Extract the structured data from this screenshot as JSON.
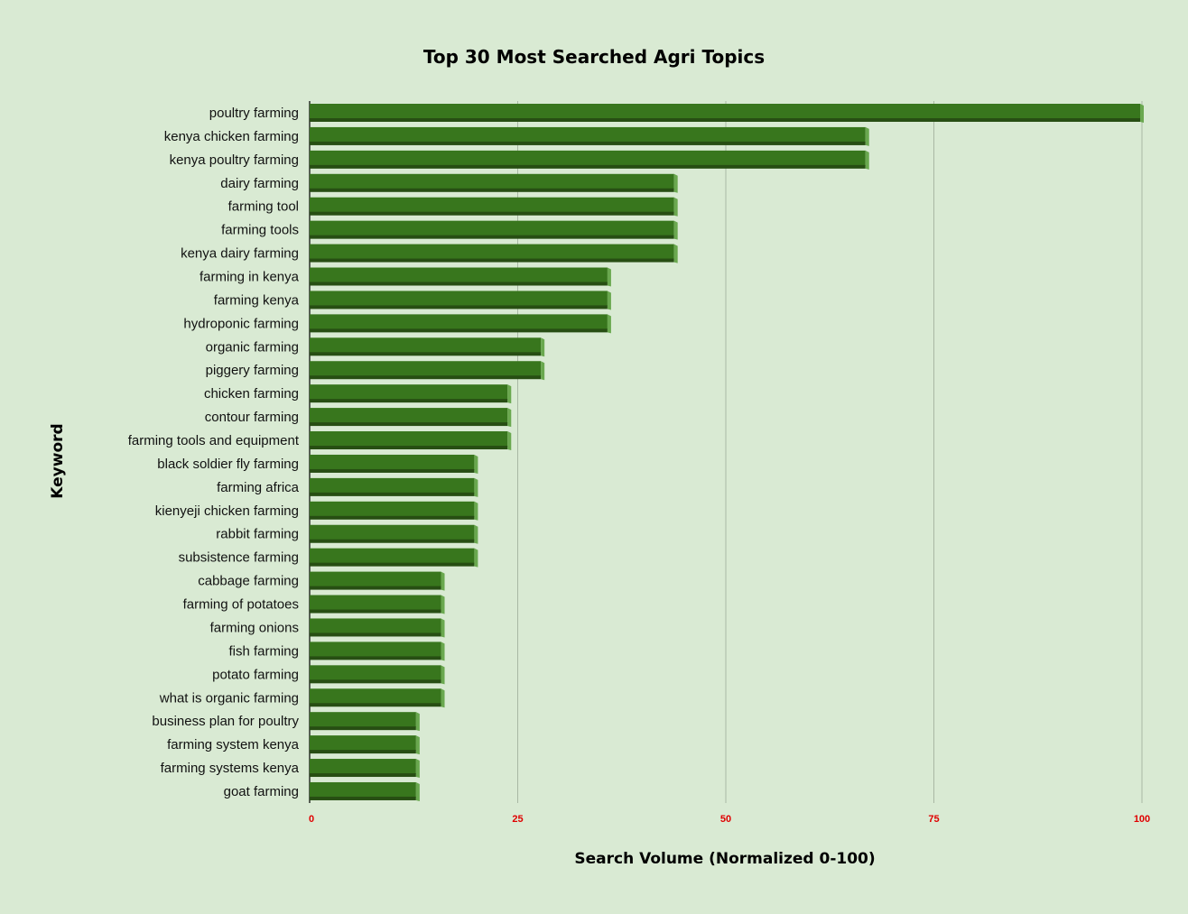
{
  "chart_data": {
    "type": "bar",
    "orientation": "horizontal",
    "title": "Top 30 Most Searched Agri Topics",
    "xlabel": "Search Volume (Normalized 0-100)",
    "ylabel": "Keyword",
    "xlim": [
      0,
      100
    ],
    "xticks": [
      0,
      25,
      50,
      75,
      100
    ],
    "grid": true,
    "legend": "none",
    "colors": {
      "background": "#d9ead3",
      "bar": "#38761d",
      "bar_dark": "#274e13",
      "bar_side": "#6aa84f",
      "tick_label": "#e00000",
      "gridline": "#a9b8a4"
    },
    "categories": [
      "poultry farming",
      "kenya chicken farming",
      "kenya poultry farming",
      "dairy farming",
      "farming tool",
      "farming tools",
      "kenya dairy farming",
      "farming in kenya",
      "farming kenya",
      "hydroponic farming",
      "organic farming",
      "piggery farming",
      "chicken farming",
      "contour farming",
      "farming tools and equipment",
      "black soldier fly farming",
      "farming africa",
      "kienyeji chicken farming",
      "rabbit farming",
      "subsistence farming",
      "cabbage farming",
      "farming of potatoes",
      "farming onions",
      "fish farming",
      "potato farming",
      "what is organic farming",
      "business plan for poultry",
      "farming system kenya",
      "farming systems kenya",
      "goat farming"
    ],
    "values": [
      100,
      67,
      67,
      44,
      44,
      44,
      44,
      36,
      36,
      36,
      28,
      28,
      24,
      24,
      24,
      20,
      20,
      20,
      20,
      20,
      16,
      16,
      16,
      16,
      16,
      16,
      13,
      13,
      13,
      13
    ]
  }
}
